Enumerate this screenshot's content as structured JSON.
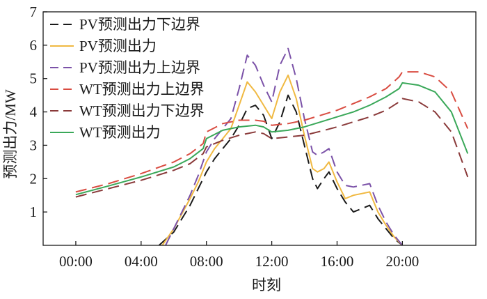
{
  "chart_data": {
    "type": "line",
    "xlabel": "时刻",
    "ylabel": "预测出力/MW",
    "xlim": [
      -2,
      24.5
    ],
    "ylim": [
      0,
      7
    ],
    "x_ticks": [
      {
        "value": 0,
        "label": "00:00"
      },
      {
        "value": 4,
        "label": "04:00"
      },
      {
        "value": 8,
        "label": "08:00"
      },
      {
        "value": 12,
        "label": "12:00"
      },
      {
        "value": 16,
        "label": "16:00"
      },
      {
        "value": 20,
        "label": "20:00"
      }
    ],
    "y_ticks": [
      1,
      2,
      3,
      4,
      5,
      6,
      7
    ],
    "grid": false,
    "legend_position": "top-left",
    "series": [
      {
        "name": "PV预测出力下边界",
        "color": "#1a1a1a",
        "dash": "dashed",
        "x": [
          5.1,
          6,
          7,
          7.5,
          8,
          8.5,
          9,
          9.5,
          10,
          10.5,
          11,
          11.5,
          12,
          12.5,
          13,
          13.5,
          14,
          14.5,
          14.8,
          15.2,
          15.5,
          16,
          16.5,
          17,
          17.5,
          18,
          18.5,
          19,
          19.5,
          20
        ],
        "y": [
          0,
          0.4,
          1.2,
          1.7,
          2.2,
          2.6,
          2.9,
          3.2,
          3.6,
          4.1,
          4.2,
          3.9,
          3.2,
          3.7,
          4.5,
          4.0,
          3.0,
          2.0,
          1.7,
          2.0,
          2.2,
          1.7,
          1.3,
          1.0,
          1.1,
          1.2,
          0.8,
          0.5,
          0.2,
          0
        ]
      },
      {
        "name": "PV预测出力",
        "color": "#f0b942",
        "dash": "solid",
        "x": [
          5.3,
          6,
          7,
          7.5,
          8,
          8.5,
          9,
          9.5,
          10,
          10.5,
          11,
          11.5,
          12,
          12.5,
          13,
          13.5,
          14,
          14.5,
          14.8,
          15.2,
          15.5,
          16,
          16.5,
          17,
          17.5,
          18,
          18.5,
          19,
          19.5,
          20
        ],
        "y": [
          0,
          0.5,
          1.4,
          1.9,
          2.5,
          2.9,
          3.2,
          3.5,
          4.2,
          4.9,
          4.6,
          4.2,
          3.8,
          4.6,
          5.1,
          4.4,
          3.3,
          2.3,
          2.2,
          2.3,
          2.5,
          1.9,
          1.4,
          1.5,
          1.55,
          1.6,
          1.0,
          0.6,
          0.25,
          0
        ]
      },
      {
        "name": "PV预测出力上边界",
        "color": "#7b52a8",
        "dash": "dashed",
        "x": [
          5.5,
          6,
          7,
          7.5,
          8,
          8.5,
          9,
          9.5,
          10,
          10.5,
          11,
          11.5,
          12,
          12.5,
          13,
          13.5,
          14,
          14.5,
          14.8,
          15.2,
          15.5,
          16,
          16.5,
          17,
          17.5,
          18,
          18.5,
          19,
          19.5,
          20
        ],
        "y": [
          0,
          0.5,
          1.5,
          2.1,
          2.8,
          3.2,
          3.5,
          3.8,
          4.7,
          5.7,
          5.4,
          4.8,
          4.3,
          5.4,
          5.9,
          5.0,
          3.8,
          2.8,
          2.7,
          2.8,
          2.9,
          2.2,
          1.8,
          1.75,
          1.8,
          1.85,
          1.2,
          0.7,
          0.3,
          0
        ]
      },
      {
        "name": "WT预测出力上边界",
        "color": "#d94c41",
        "dash": "dashed",
        "x": [
          0,
          2,
          4,
          6,
          7,
          7.8,
          8,
          9,
          10,
          11,
          11.5,
          12,
          13,
          14,
          15,
          16,
          17,
          18,
          19,
          19.8,
          20,
          21,
          22,
          23,
          24
        ],
        "y": [
          1.6,
          1.85,
          2.15,
          2.5,
          2.75,
          3.05,
          3.4,
          3.65,
          3.75,
          3.75,
          3.72,
          3.6,
          3.65,
          3.75,
          3.9,
          4.05,
          4.25,
          4.45,
          4.7,
          5.05,
          5.2,
          5.2,
          5.05,
          4.6,
          3.5
        ]
      },
      {
        "name": "WT预测出力下边界",
        "color": "#8a3a3a",
        "dash": "dashed",
        "x": [
          0,
          2,
          4,
          6,
          7,
          7.8,
          8,
          9,
          10,
          11,
          11.5,
          12,
          13,
          14,
          15,
          16,
          17,
          18,
          19,
          19.8,
          20,
          21,
          22,
          23,
          24
        ],
        "y": [
          1.45,
          1.7,
          1.95,
          2.25,
          2.45,
          2.75,
          2.95,
          3.15,
          3.3,
          3.4,
          3.35,
          3.2,
          3.25,
          3.3,
          3.42,
          3.55,
          3.7,
          3.85,
          4.05,
          4.3,
          4.4,
          4.3,
          4.0,
          3.4,
          2.05
        ]
      },
      {
        "name": "WT预测出力",
        "color": "#3aa859",
        "dash": "solid",
        "x": [
          0,
          2,
          4,
          6,
          7,
          7.8,
          8,
          9,
          10,
          11,
          11.5,
          12,
          13,
          14,
          15,
          16,
          17,
          18,
          19,
          19.8,
          20,
          21,
          22,
          23,
          24
        ],
        "y": [
          1.52,
          1.78,
          2.05,
          2.35,
          2.6,
          2.9,
          3.2,
          3.45,
          3.55,
          3.6,
          3.55,
          3.4,
          3.45,
          3.55,
          3.7,
          3.85,
          4.0,
          4.2,
          4.45,
          4.7,
          4.87,
          4.8,
          4.6,
          4.0,
          2.75
        ]
      }
    ]
  }
}
